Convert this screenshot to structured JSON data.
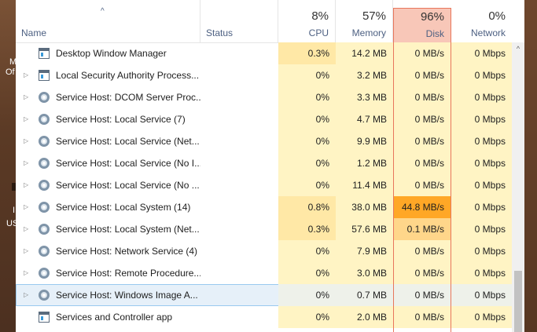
{
  "desktop": {
    "frag_1": "M",
    "frag_2": "Of",
    "frag_3": "I",
    "frag_4": "US"
  },
  "header": {
    "columns": [
      {
        "key": "name",
        "label": "Name",
        "pct": ""
      },
      {
        "key": "status",
        "label": "Status",
        "pct": ""
      },
      {
        "key": "cpu",
        "label": "CPU",
        "pct": "8%"
      },
      {
        "key": "memory",
        "label": "Memory",
        "pct": "57%"
      },
      {
        "key": "disk",
        "label": "Disk",
        "pct": "96%"
      },
      {
        "key": "network",
        "label": "Network",
        "pct": "0%"
      }
    ],
    "sort_indicator": "^"
  },
  "colors": {
    "cpu_heat_low": "#fff4c4",
    "cpu_heat_med": "#ffe8a6",
    "disk_heat_high": "#ffa726",
    "disk_heat_med": "#ffd68a",
    "disk_column_border": "#e8765c",
    "disk_header_bg": "#f8c7b8",
    "selection_bg": "#e6f0f9"
  },
  "processes": [
    {
      "name": "Desktop Window Manager",
      "icon": "window-icon",
      "expandable": false,
      "status": "",
      "cpu": "0.3%",
      "memory": "14.2 MB",
      "disk": "0 MB/s",
      "network": "0 Mbps",
      "cpu_heat": "med",
      "disk_heat": "low",
      "selected": false
    },
    {
      "name": "Local Security Authority Process...",
      "icon": "window-icon",
      "expandable": true,
      "status": "",
      "cpu": "0%",
      "memory": "3.2 MB",
      "disk": "0 MB/s",
      "network": "0 Mbps",
      "cpu_heat": "low",
      "disk_heat": "low",
      "selected": false
    },
    {
      "name": "Service Host: DCOM Server Proc...",
      "icon": "gear",
      "expandable": true,
      "status": "",
      "cpu": "0%",
      "memory": "3.3 MB",
      "disk": "0 MB/s",
      "network": "0 Mbps",
      "cpu_heat": "low",
      "disk_heat": "low",
      "selected": false
    },
    {
      "name": "Service Host: Local Service (7)",
      "icon": "gear",
      "expandable": true,
      "status": "",
      "cpu": "0%",
      "memory": "4.7 MB",
      "disk": "0 MB/s",
      "network": "0 Mbps",
      "cpu_heat": "low",
      "disk_heat": "low",
      "selected": false
    },
    {
      "name": "Service Host: Local Service (Net...",
      "icon": "gear",
      "expandable": true,
      "status": "",
      "cpu": "0%",
      "memory": "9.9 MB",
      "disk": "0 MB/s",
      "network": "0 Mbps",
      "cpu_heat": "low",
      "disk_heat": "low",
      "selected": false
    },
    {
      "name": "Service Host: Local Service (No I...",
      "icon": "gear",
      "expandable": true,
      "status": "",
      "cpu": "0%",
      "memory": "1.2 MB",
      "disk": "0 MB/s",
      "network": "0 Mbps",
      "cpu_heat": "low",
      "disk_heat": "low",
      "selected": false
    },
    {
      "name": "Service Host: Local Service (No ...",
      "icon": "gear",
      "expandable": true,
      "status": "",
      "cpu": "0%",
      "memory": "11.4 MB",
      "disk": "0 MB/s",
      "network": "0 Mbps",
      "cpu_heat": "low",
      "disk_heat": "low",
      "selected": false
    },
    {
      "name": "Service Host: Local System (14)",
      "icon": "gear",
      "expandable": true,
      "status": "",
      "cpu": "0.8%",
      "memory": "38.0 MB",
      "disk": "44.8 MB/s",
      "network": "0 Mbps",
      "cpu_heat": "med",
      "disk_heat": "high",
      "selected": false
    },
    {
      "name": "Service Host: Local System (Net...",
      "icon": "gear",
      "expandable": true,
      "status": "",
      "cpu": "0.3%",
      "memory": "57.6 MB",
      "disk": "0.1 MB/s",
      "network": "0 Mbps",
      "cpu_heat": "med",
      "disk_heat": "med",
      "selected": false
    },
    {
      "name": "Service Host: Network Service (4)",
      "icon": "gear",
      "expandable": true,
      "status": "",
      "cpu": "0%",
      "memory": "7.9 MB",
      "disk": "0 MB/s",
      "network": "0 Mbps",
      "cpu_heat": "low",
      "disk_heat": "low",
      "selected": false
    },
    {
      "name": "Service Host: Remote Procedure...",
      "icon": "gear",
      "expandable": true,
      "status": "",
      "cpu": "0%",
      "memory": "3.0 MB",
      "disk": "0 MB/s",
      "network": "0 Mbps",
      "cpu_heat": "low",
      "disk_heat": "low",
      "selected": false
    },
    {
      "name": "Service Host: Windows Image A...",
      "icon": "gear",
      "expandable": true,
      "status": "",
      "cpu": "0%",
      "memory": "0.7 MB",
      "disk": "0 MB/s",
      "network": "0 Mbps",
      "cpu_heat": "low",
      "disk_heat": "low",
      "selected": true
    },
    {
      "name": "Services and Controller app",
      "icon": "window-icon",
      "expandable": false,
      "status": "",
      "cpu": "0%",
      "memory": "2.0 MB",
      "disk": "0 MB/s",
      "network": "0 Mbps",
      "cpu_heat": "low",
      "disk_heat": "low",
      "selected": false
    }
  ],
  "scrollbar": {
    "up_arrow": "^",
    "visible_fraction": 0.21,
    "position_fraction": 1.0
  }
}
